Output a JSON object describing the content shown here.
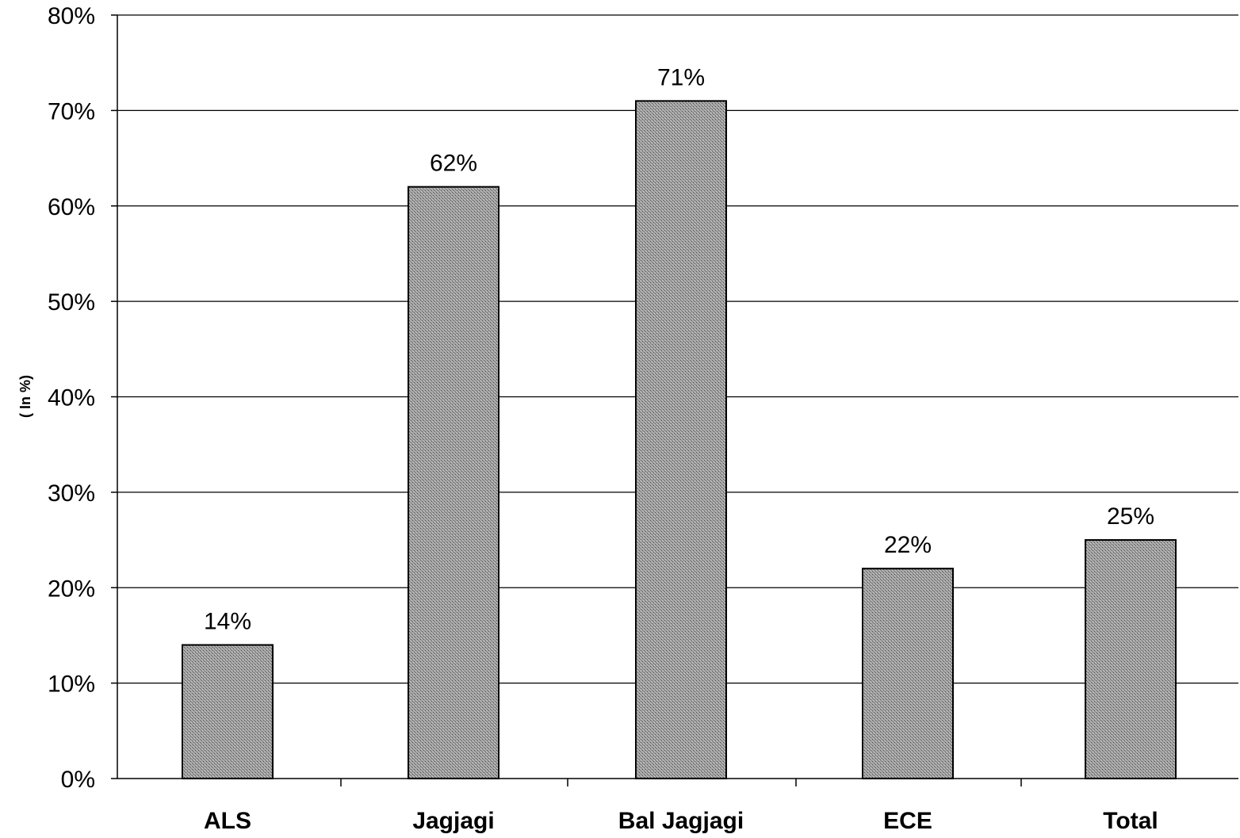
{
  "chart_data": {
    "type": "bar",
    "ylabel": "( In %)",
    "categories": [
      "ALS",
      "Jagjagi",
      "Bal Jagjagi",
      "ECE",
      "Total"
    ],
    "values": [
      14,
      62,
      71,
      22,
      25
    ],
    "data_labels": [
      "14%",
      "62%",
      "71%",
      "22%",
      "25%"
    ],
    "ylim": [
      0,
      80
    ],
    "yticks": [
      "0%",
      "10%",
      "20%",
      "30%",
      "40%",
      "50%",
      "60%",
      "70%",
      "80%"
    ],
    "grid": true,
    "legend": "none",
    "colors": {
      "bar": "#8e8e8e",
      "bar_outline": "#000000",
      "grid": "#000000",
      "background": "#ffffff"
    }
  }
}
